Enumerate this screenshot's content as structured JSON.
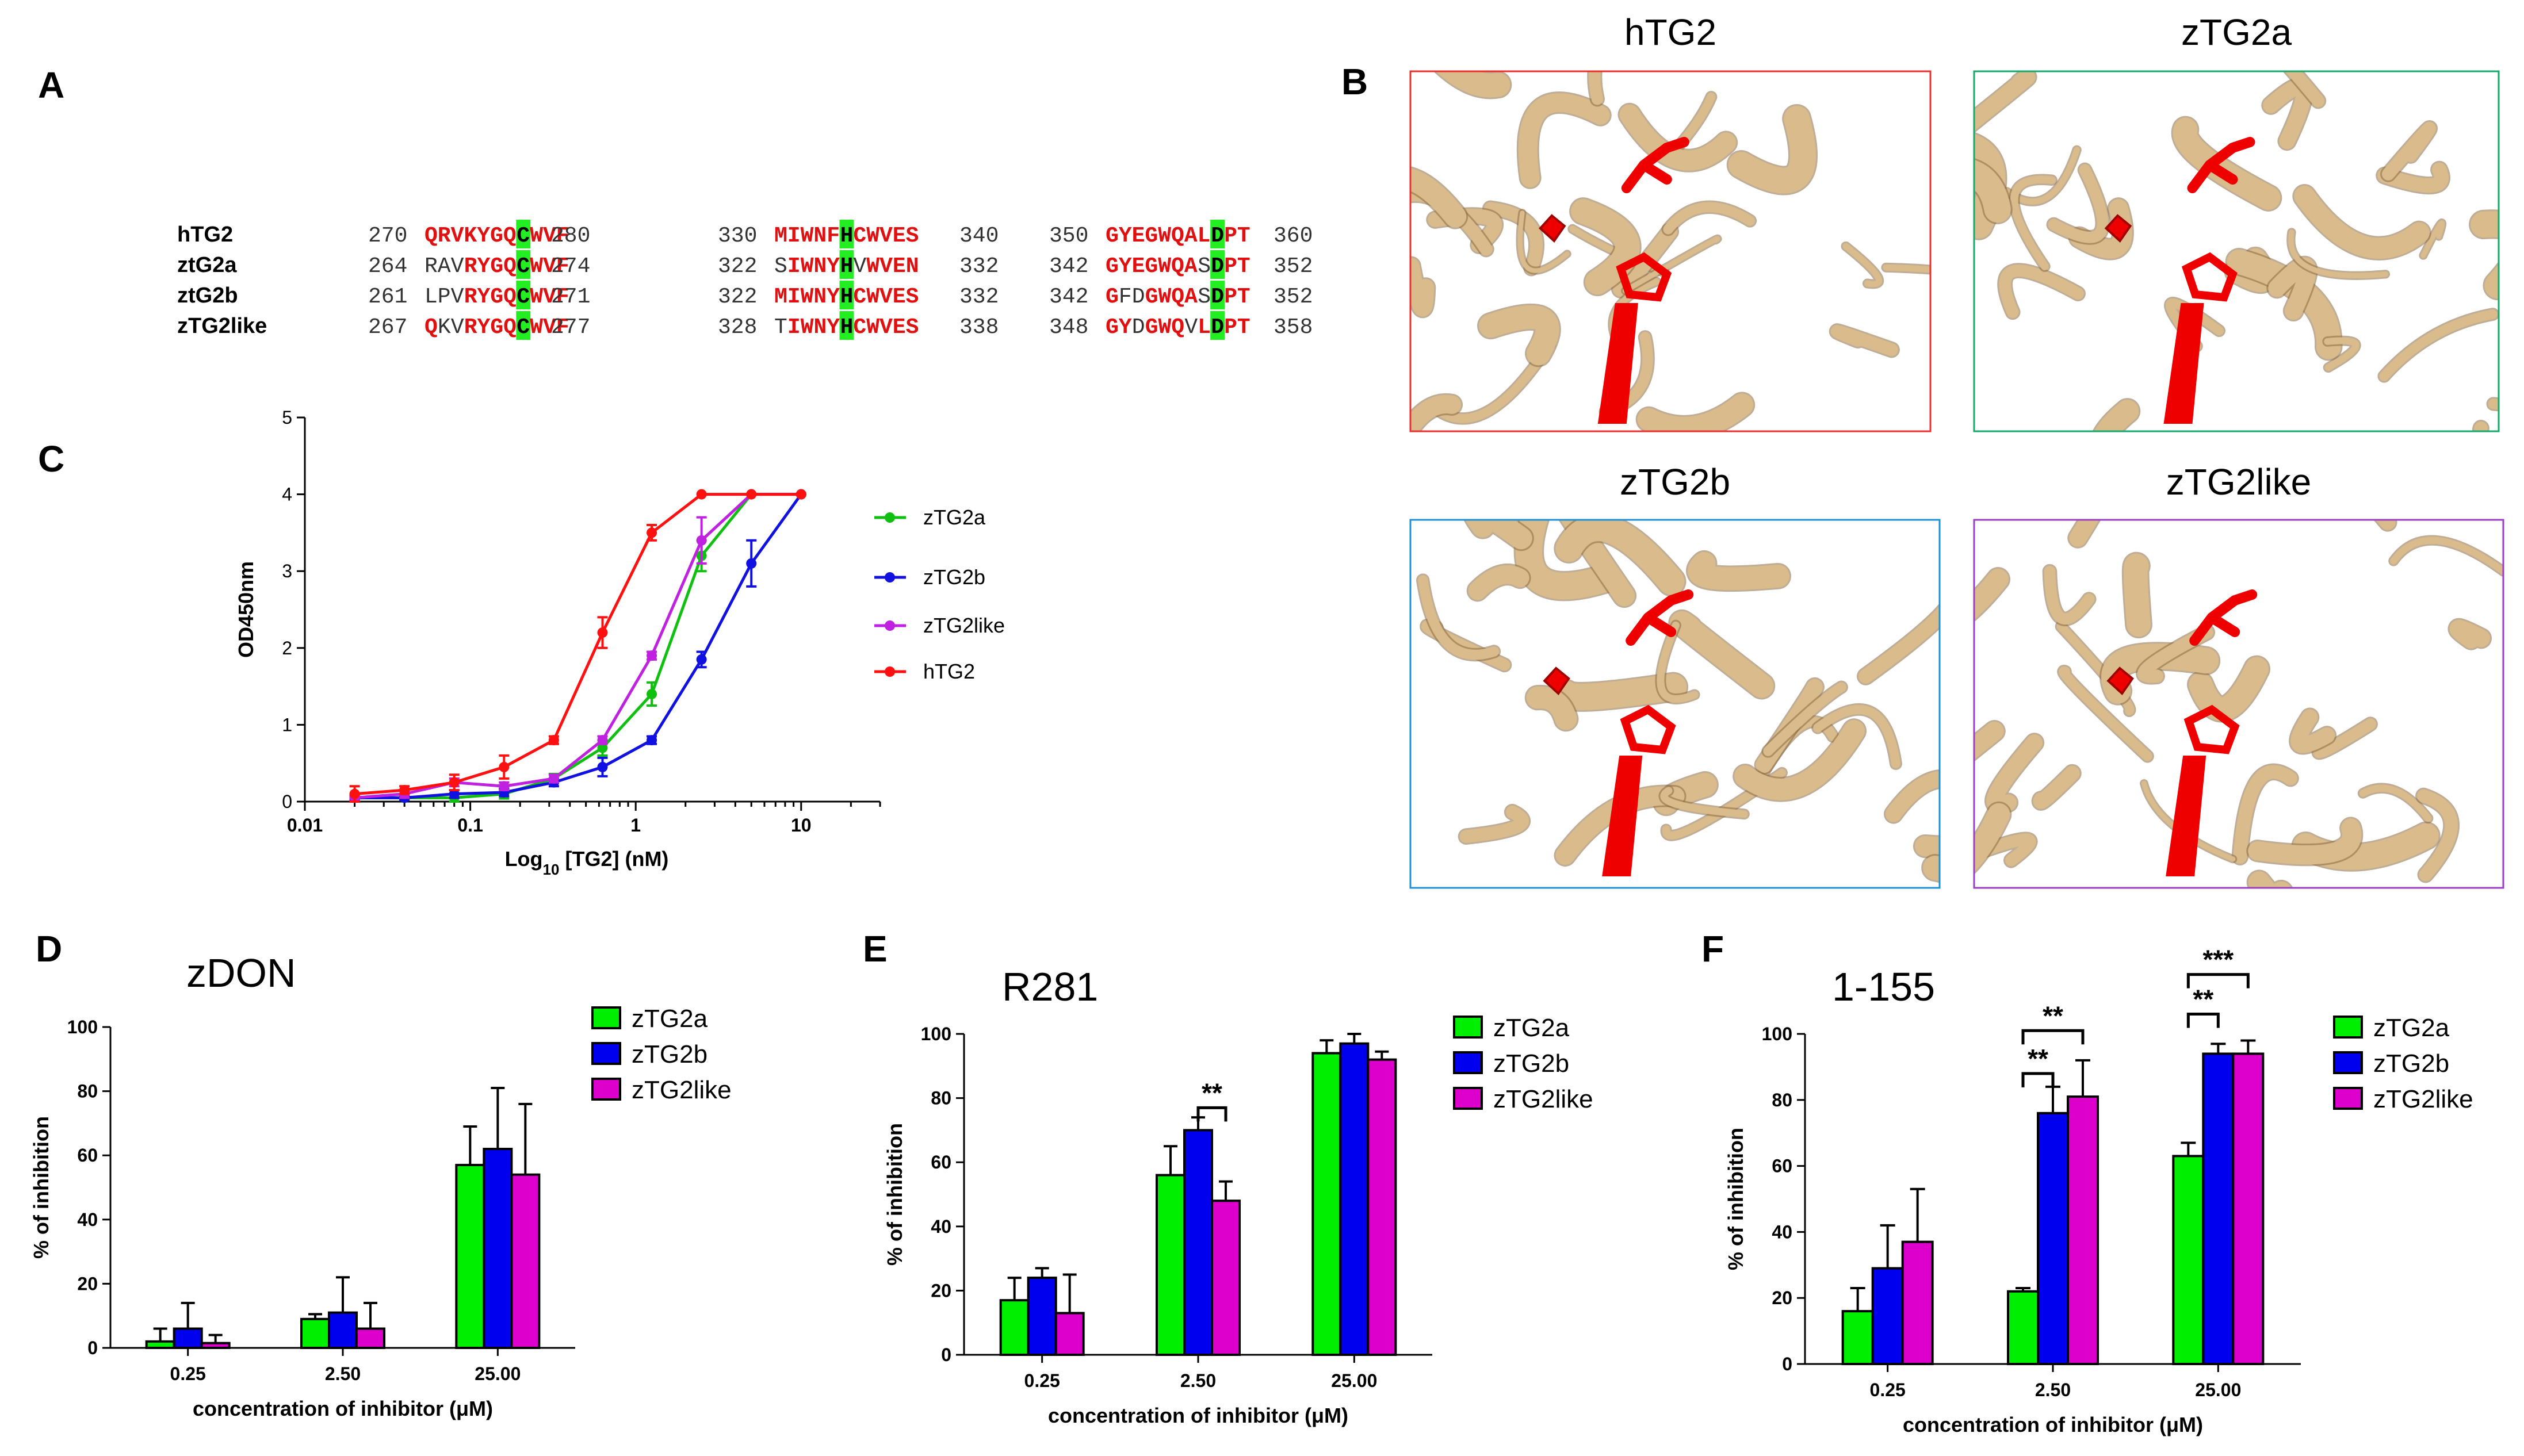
{
  "panels": {
    "A": "A",
    "B": "B",
    "C": "C",
    "D": "D",
    "E": "E",
    "F": "F"
  },
  "alignment": {
    "rows": [
      {
        "name": "hTG2",
        "s1": "270",
        "b1": [
          [
            "r",
            "QRVKYGQ"
          ],
          [
            "g",
            "C"
          ],
          [
            "r",
            "WVF"
          ]
        ],
        "e1": "280",
        "s2": "330",
        "b2": [
          [
            "r",
            "MIWNF"
          ],
          [
            "g",
            "H"
          ],
          [
            "r",
            "CWVES"
          ]
        ],
        "e2": "340",
        "s3": "350",
        "b3": [
          [
            "r",
            "GYEGWQAL"
          ],
          [
            "g",
            "D"
          ],
          [
            "r",
            "PT"
          ]
        ],
        "e3": "360"
      },
      {
        "name": "ztG2a",
        "s1": "264",
        "b1": [
          [
            "k",
            "RAV"
          ],
          [
            "r",
            "RYGQ"
          ],
          [
            "g",
            "C"
          ],
          [
            "r",
            "WVF"
          ]
        ],
        "e1": "274",
        "s2": "322",
        "b2": [
          [
            "k",
            "S"
          ],
          [
            "r",
            "IWNY"
          ],
          [
            "g",
            "H"
          ],
          [
            "k",
            "V"
          ],
          [
            "r",
            "WVEN"
          ]
        ],
        "e2": "332",
        "s3": "342",
        "b3": [
          [
            "r",
            "GYEGWQA"
          ],
          [
            "k",
            "S"
          ],
          [
            "g",
            "D"
          ],
          [
            "r",
            "PT"
          ]
        ],
        "e3": "352"
      },
      {
        "name": "ztG2b",
        "s1": "261",
        "b1": [
          [
            "k",
            "LPV"
          ],
          [
            "r",
            "RYGQ"
          ],
          [
            "g",
            "C"
          ],
          [
            "r",
            "WVF"
          ]
        ],
        "e1": "271",
        "s2": "322",
        "b2": [
          [
            "r",
            "MIWNY"
          ],
          [
            "g",
            "H"
          ],
          [
            "r",
            "CWVES"
          ]
        ],
        "e2": "332",
        "s3": "342",
        "b3": [
          [
            "r",
            "G"
          ],
          [
            "k",
            "FD"
          ],
          [
            "r",
            "GWQA"
          ],
          [
            "k",
            "S"
          ],
          [
            "g",
            "D"
          ],
          [
            "r",
            "PT"
          ]
        ],
        "e3": "352"
      },
      {
        "name": "zTG2like",
        "s1": "267",
        "b1": [
          [
            "r",
            "Q"
          ],
          [
            "k",
            "KV"
          ],
          [
            "r",
            "RYGQ"
          ],
          [
            "g",
            "C"
          ],
          [
            "r",
            "WVF"
          ]
        ],
        "e1": "277",
        "s2": "328",
        "b2": [
          [
            "k",
            "T"
          ],
          [
            "r",
            "IWNY"
          ],
          [
            "g",
            "H"
          ],
          [
            "r",
            "CWVES"
          ]
        ],
        "e2": "338",
        "s3": "348",
        "b3": [
          [
            "r",
            "GY"
          ],
          [
            "k",
            "D"
          ],
          [
            "r",
            "GWQ"
          ],
          [
            "k",
            "V"
          ],
          [
            "r",
            "L"
          ],
          [
            "g",
            "D"
          ],
          [
            "r",
            "PT"
          ]
        ],
        "e3": "358"
      }
    ]
  },
  "structures": [
    {
      "label": "hTG2",
      "border": "#e8302e"
    },
    {
      "label": "zTG2a",
      "border": "#17a96b"
    },
    {
      "label": "zTG2b",
      "border": "#1e8fd0"
    },
    {
      "label": "zTG2like",
      "border": "#9b3fc0"
    }
  ],
  "colors": {
    "zTG2a": "#00ee00",
    "zTG2b": "#0000ee",
    "zTG2like": "#dd00cc",
    "hTG2": "#ff0000",
    "lineA": "#10c010",
    "lineB": "#1010e0",
    "lineLike": "#c020e0",
    "lineH": "#ff1010",
    "protein": "#d9bb8c",
    "proteinDark": "#8a6a40",
    "site": "#ee0000",
    "green": "#22ee22"
  },
  "chart_data": [
    {
      "id": "C",
      "type": "line",
      "xscale": "log",
      "xlim": [
        0.01,
        30
      ],
      "ylim": [
        0,
        5
      ],
      "xticks": [
        "0.01",
        "0.1",
        "1",
        "10"
      ],
      "yticks": [
        "0",
        "1",
        "2",
        "3",
        "4",
        "5"
      ],
      "xlabel": "Log",
      "xlabel_sub": "10",
      "xlabel_rest": " [TG2] (nM)",
      "ylabel": "OD450nm",
      "series": [
        {
          "name": "zTG2a",
          "x": [
            0.02,
            0.04,
            0.08,
            0.16,
            0.32,
            0.63,
            1.25,
            2.5,
            5,
            10
          ],
          "y": [
            0.05,
            0.05,
            0.05,
            0.1,
            0.3,
            0.7,
            1.4,
            3.2,
            4.0,
            4.0
          ],
          "err": [
            0.05,
            0.03,
            0.05,
            0.06,
            0.06,
            0.1,
            0.15,
            0.2,
            0,
            0
          ]
        },
        {
          "name": "zTG2b",
          "x": [
            0.02,
            0.04,
            0.08,
            0.16,
            0.32,
            0.63,
            1.25,
            2.5,
            5,
            10
          ],
          "y": [
            0.05,
            0.05,
            0.1,
            0.12,
            0.25,
            0.45,
            0.8,
            1.85,
            3.1,
            4.0
          ],
          "err": [
            0.03,
            0.03,
            0.05,
            0.05,
            0.05,
            0.12,
            0.05,
            0.1,
            0.3,
            0
          ]
        },
        {
          "name": "zTG2like",
          "x": [
            0.02,
            0.04,
            0.08,
            0.16,
            0.32,
            0.63,
            1.25,
            2.5,
            5,
            10
          ],
          "y": [
            0.05,
            0.1,
            0.25,
            0.2,
            0.3,
            0.8,
            1.9,
            3.4,
            4.0,
            4.0
          ],
          "err": [
            0.05,
            0.05,
            0.05,
            0.05,
            0.05,
            0.05,
            0.05,
            0.3,
            0,
            0
          ]
        },
        {
          "name": "hTG2",
          "x": [
            0.02,
            0.04,
            0.08,
            0.16,
            0.32,
            0.63,
            1.25,
            2.5,
            5,
            10
          ],
          "y": [
            0.1,
            0.15,
            0.25,
            0.45,
            0.8,
            2.2,
            3.5,
            4.0,
            4.0,
            4.0
          ],
          "err": [
            0.1,
            0.05,
            0.1,
            0.15,
            0.05,
            0.2,
            0.1,
            0,
            0,
            0
          ]
        }
      ]
    },
    {
      "id": "D",
      "type": "bar",
      "title": "zDON",
      "categories": [
        "0.25",
        "2.50",
        "25.00"
      ],
      "ylim": [
        0,
        100
      ],
      "yticks": [
        "0",
        "20",
        "40",
        "60",
        "80",
        "100"
      ],
      "xlabel": "concentration of inhibitor (μM)",
      "ylabel": "% of inhibition",
      "series": [
        {
          "name": "zTG2a",
          "values": [
            2,
            9,
            57
          ],
          "err": [
            4,
            1.5,
            12
          ]
        },
        {
          "name": "zTG2b",
          "values": [
            6,
            11,
            62
          ],
          "err": [
            8,
            11,
            19
          ]
        },
        {
          "name": "zTG2like",
          "values": [
            1.5,
            6,
            54
          ],
          "err": [
            2.5,
            8,
            22
          ]
        }
      ],
      "sig": []
    },
    {
      "id": "E",
      "type": "bar",
      "title": "R281",
      "categories": [
        "0.25",
        "2.50",
        "25.00"
      ],
      "ylim": [
        0,
        100
      ],
      "yticks": [
        "0",
        "20",
        "40",
        "60",
        "80",
        "100"
      ],
      "xlabel": "concentration of inhibitor (μM)",
      "ylabel": "% of inhibition",
      "series": [
        {
          "name": "zTG2a",
          "values": [
            17,
            56,
            94
          ],
          "err": [
            7,
            9,
            4
          ]
        },
        {
          "name": "zTG2b",
          "values": [
            24,
            70,
            97
          ],
          "err": [
            3,
            4,
            3
          ]
        },
        {
          "name": "zTG2like",
          "values": [
            13,
            48,
            92
          ],
          "err": [
            12,
            6,
            2.5
          ]
        }
      ],
      "sig": [
        {
          "cat": 1,
          "from": 1,
          "to": 2,
          "y": 77,
          "label": "**"
        }
      ]
    },
    {
      "id": "F",
      "type": "bar",
      "title": "1-155",
      "categories": [
        "0.25",
        "2.50",
        "25.00"
      ],
      "ylim": [
        0,
        100
      ],
      "yticks": [
        "0",
        "20",
        "40",
        "60",
        "80",
        "100"
      ],
      "xlabel": "concentration of inhibitor (μM)",
      "ylabel": "% of inhibition",
      "series": [
        {
          "name": "zTG2a",
          "values": [
            16,
            22,
            63
          ],
          "err": [
            7,
            1,
            4
          ]
        },
        {
          "name": "zTG2b",
          "values": [
            29,
            76,
            94
          ],
          "err": [
            13,
            8,
            3
          ]
        },
        {
          "name": "zTG2like",
          "values": [
            37,
            81,
            94
          ],
          "err": [
            16,
            11,
            4
          ]
        }
      ],
      "sig": [
        {
          "cat": 1,
          "from": 0,
          "to": 1,
          "y": 88,
          "label": "**"
        },
        {
          "cat": 1,
          "from": 0,
          "to": 2,
          "y": 101,
          "label": "**"
        },
        {
          "cat": 2,
          "from": 0,
          "to": 1,
          "y": 106,
          "label": "**"
        },
        {
          "cat": 2,
          "from": 0,
          "to": 2,
          "y": 118,
          "label": "***"
        }
      ]
    }
  ]
}
